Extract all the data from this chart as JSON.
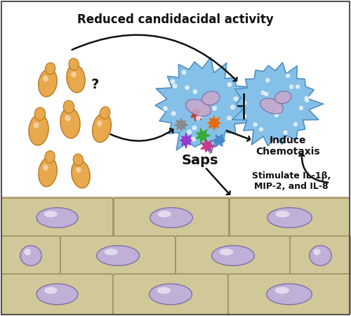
{
  "title": "Reduced candidacidal activity",
  "title_fontsize": 12,
  "background_color": "#ffffff",
  "border_color": "#555555",
  "candida_color": "#E8A84C",
  "candida_shadow": "#B87820",
  "neutrophil_color": "#85C0E8",
  "neutrophil_dark": "#4A88C0",
  "neutrophil_dots": "#aaccee",
  "neutrophil_nucleus_color": "#C8A8CC",
  "neutrophil_nucleus_dark": "#7060A0",
  "epithelial_cell_color": "#D0C898",
  "epithelial_cell_dark": "#A09060",
  "epithelial_nucleus_color": "#C0B0D8",
  "epithelial_nucleus_outline": "#8070A8",
  "epithelial_border_color": "#B8A870",
  "epithelial_bg": "#C8BE90",
  "arrow_color": "#111111",
  "text_color": "#111111",
  "sap_colors": [
    "#888888",
    "#CC3333",
    "#9933CC",
    "#33AA33",
    "#EE6600",
    "#CC3388",
    "#4488CC"
  ],
  "label_saps": "Saps",
  "label_chemotaxis": "Induce\nChemotaxis",
  "label_stimulate": "Stimulate IL-1β,\nMIP-2, and IL-8",
  "label_question": "?",
  "fig_width": 5.0,
  "fig_height": 4.5,
  "dpi": 100
}
